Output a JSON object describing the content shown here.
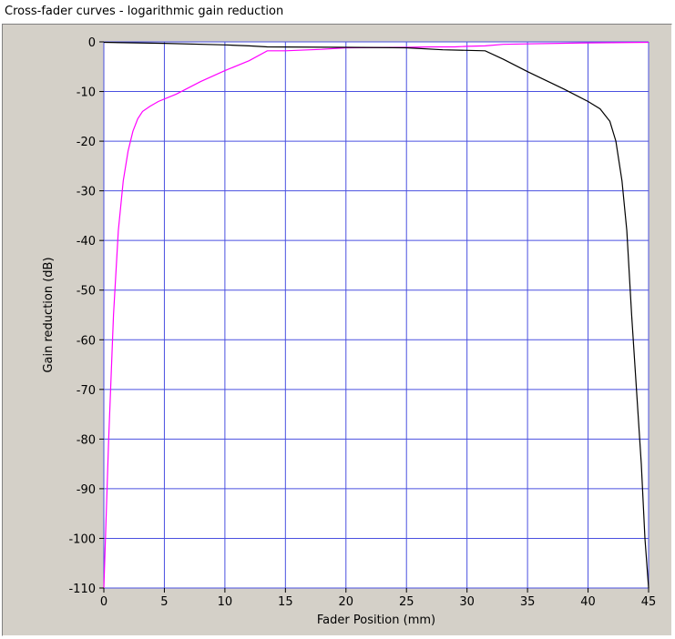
{
  "chart_data": {
    "type": "line",
    "title": "Cross-fader curves - logarithmic gain reduction",
    "xlabel": "Fader Position (mm)",
    "ylabel": "Gain reduction (dB)",
    "xlim": [
      0,
      45
    ],
    "ylim": [
      -110,
      0
    ],
    "xticks": [
      0,
      5,
      10,
      15,
      20,
      25,
      30,
      35,
      40,
      45
    ],
    "yticks": [
      0,
      -10,
      -20,
      -30,
      -40,
      -50,
      -60,
      -70,
      -80,
      -90,
      -100,
      -110
    ],
    "grid": true,
    "colors": {
      "plot_bg": "#ffffff",
      "grid": "#4a50e0",
      "frame": "#d4d0c8"
    },
    "series": [
      {
        "color": "#ff00ff",
        "x": [
          0,
          0.4,
          0.8,
          1.2,
          1.6,
          2.0,
          2.4,
          2.8,
          3.2,
          3.8,
          4.5,
          6,
          8,
          10,
          12,
          13.5,
          15,
          18,
          20,
          25,
          27,
          29,
          30,
          31.5,
          33,
          35,
          40,
          45
        ],
        "y": [
          -110,
          -80,
          -55,
          -38,
          -28,
          -22,
          -18,
          -15.5,
          -14,
          -13,
          -12,
          -10.5,
          -8,
          -5.8,
          -3.8,
          -1.8,
          -1.8,
          -1.5,
          -1.2,
          -1.1,
          -1.0,
          -1.0,
          -0.9,
          -0.8,
          -0.5,
          -0.4,
          -0.2,
          -0.1
        ]
      },
      {
        "color": "#000000",
        "x": [
          0,
          5,
          10,
          12,
          13.5,
          20,
          25,
          28,
          30,
          31.5,
          33,
          35,
          38,
          40,
          41,
          41.8,
          42.3,
          42.8,
          43.2,
          43.6,
          44.0,
          44.4,
          44.7,
          45
        ],
        "y": [
          -0.1,
          -0.3,
          -0.6,
          -0.8,
          -1.0,
          -1.1,
          -1.2,
          -1.6,
          -1.7,
          -1.8,
          -3.5,
          -6,
          -9.5,
          -12,
          -13.5,
          -16,
          -20,
          -28,
          -38,
          -55,
          -70,
          -85,
          -100,
          -110
        ]
      }
    ]
  }
}
